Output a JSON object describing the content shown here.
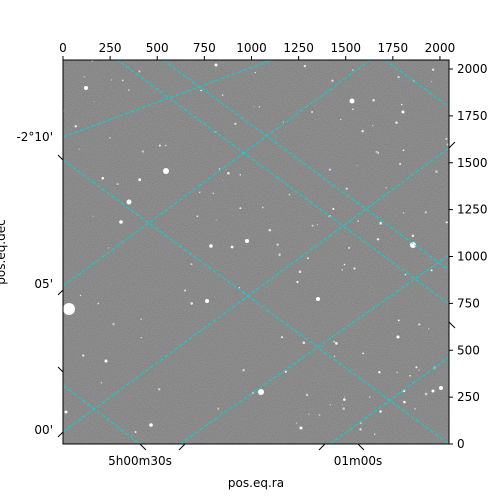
{
  "chart_data": {
    "type": "image",
    "xlabel": "pos.eq.ra",
    "ylabel": "pos.eq.dec",
    "pixel_axes": {
      "x_ticks": [
        0,
        250,
        500,
        750,
        1000,
        1250,
        1500,
        1750,
        2000
      ],
      "y_ticks": [
        0,
        250,
        500,
        750,
        1000,
        1250,
        1500,
        1750,
        2000
      ],
      "xlim": [
        0,
        2048
      ],
      "ylim": [
        0,
        2048
      ]
    },
    "ra_ticks": [
      "5h00m30s",
      "01m00s"
    ],
    "dec_ticks": [
      "-2°10'",
      "05'",
      "00'"
    ],
    "grid": true,
    "grid_color": "#00d7d7",
    "image_colormap": "gray"
  }
}
